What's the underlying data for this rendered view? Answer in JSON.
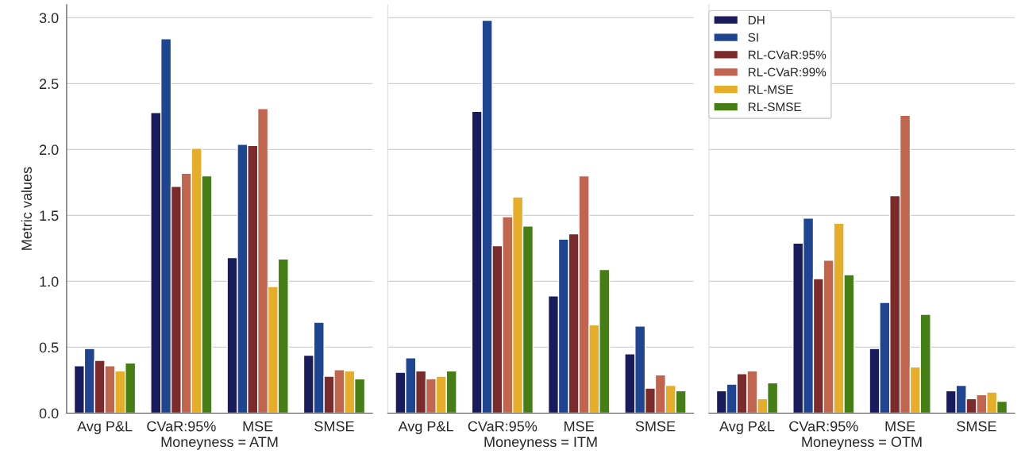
{
  "chart_data": [
    {
      "type": "bar",
      "ylabel": "Metric values",
      "xlabel": "Moneyness = ATM",
      "categories": [
        "Avg P&L",
        "CVaR:95%",
        "MSE",
        "SMSE"
      ],
      "ylim": [
        0,
        3.1
      ],
      "yticks": [
        {
          "value": 0,
          "label": "0.0"
        },
        {
          "value": 0.5,
          "label": "0.5"
        },
        {
          "value": 1,
          "label": "1.0"
        },
        {
          "value": 1.5,
          "label": "1.5"
        },
        {
          "value": 2,
          "label": "2.0"
        },
        {
          "value": 2.5,
          "label": "2.5"
        },
        {
          "value": 3,
          "label": "3.0"
        }
      ],
      "grid": "y",
      "legend": false,
      "series": [
        {
          "color": "#1a1a5e",
          "values": [
            0.36,
            2.28,
            1.18,
            0.44
          ]
        },
        {
          "color": "#1f4591",
          "values": [
            0.49,
            2.84,
            2.04,
            0.69
          ]
        },
        {
          "color": "#7b2b2b",
          "values": [
            0.4,
            1.72,
            2.03,
            0.28
          ]
        },
        {
          "color": "#c06550",
          "values": [
            0.36,
            1.82,
            2.31,
            0.33
          ]
        },
        {
          "color": "#e5ad2a",
          "values": [
            0.32,
            2.01,
            0.96,
            0.32
          ]
        },
        {
          "color": "#457e14",
          "values": [
            0.38,
            1.8,
            1.17,
            0.26
          ]
        }
      ]
    },
    {
      "type": "bar",
      "xlabel": "Moneyness = ITM",
      "categories": [
        "Avg P&L",
        "CVaR:95%",
        "MSE",
        "SMSE"
      ],
      "ylim": [
        0,
        3.1
      ],
      "yticks": [
        0,
        0.5,
        1,
        1.5,
        2,
        2.5,
        3
      ],
      "tick_labels": "x",
      "grid": "y",
      "legend": false,
      "series": [
        {
          "color": "#1a1a5e",
          "values": [
            0.31,
            2.29,
            0.89,
            0.45
          ]
        },
        {
          "color": "#1f4591",
          "values": [
            0.42,
            2.98,
            1.32,
            0.66
          ]
        },
        {
          "color": "#7b2b2b",
          "values": [
            0.32,
            1.27,
            1.36,
            0.19
          ]
        },
        {
          "color": "#c06550",
          "values": [
            0.26,
            1.49,
            1.8,
            0.29
          ]
        },
        {
          "color": "#e5ad2a",
          "values": [
            0.28,
            1.64,
            0.67,
            0.21
          ]
        },
        {
          "color": "#457e14",
          "values": [
            0.32,
            1.42,
            1.09,
            0.17
          ]
        }
      ]
    },
    {
      "type": "bar",
      "xlabel": "Moneyness = OTM",
      "categories": [
        "Avg P&L",
        "CVaR:95%",
        "MSE",
        "SMSE"
      ],
      "ylim": [
        0,
        3.1
      ],
      "yticks": [
        0,
        0.5,
        1,
        1.5,
        2,
        2.5,
        3
      ],
      "tick_labels": "x",
      "grid": "y",
      "legend": "top left",
      "series": [
        {
          "name": "DH",
          "color": "#1a1a5e",
          "values": [
            0.17,
            1.29,
            0.49,
            0.17
          ]
        },
        {
          "name": "SI",
          "color": "#1f4591",
          "values": [
            0.22,
            1.48,
            0.84,
            0.21
          ]
        },
        {
          "name": "RL-CVaR:95%",
          "color": "#7b2b2b",
          "values": [
            0.3,
            1.02,
            1.65,
            0.11
          ]
        },
        {
          "name": "RL-CVaR:99%",
          "color": "#c06550",
          "values": [
            0.32,
            1.16,
            2.26,
            0.14
          ]
        },
        {
          "name": "RL-MSE",
          "color": "#e5ad2a",
          "values": [
            0.11,
            1.44,
            0.35,
            0.16
          ]
        },
        {
          "name": "RL-SMSE",
          "color": "#457e14",
          "values": [
            0.23,
            1.05,
            0.75,
            0.09
          ]
        }
      ]
    }
  ]
}
